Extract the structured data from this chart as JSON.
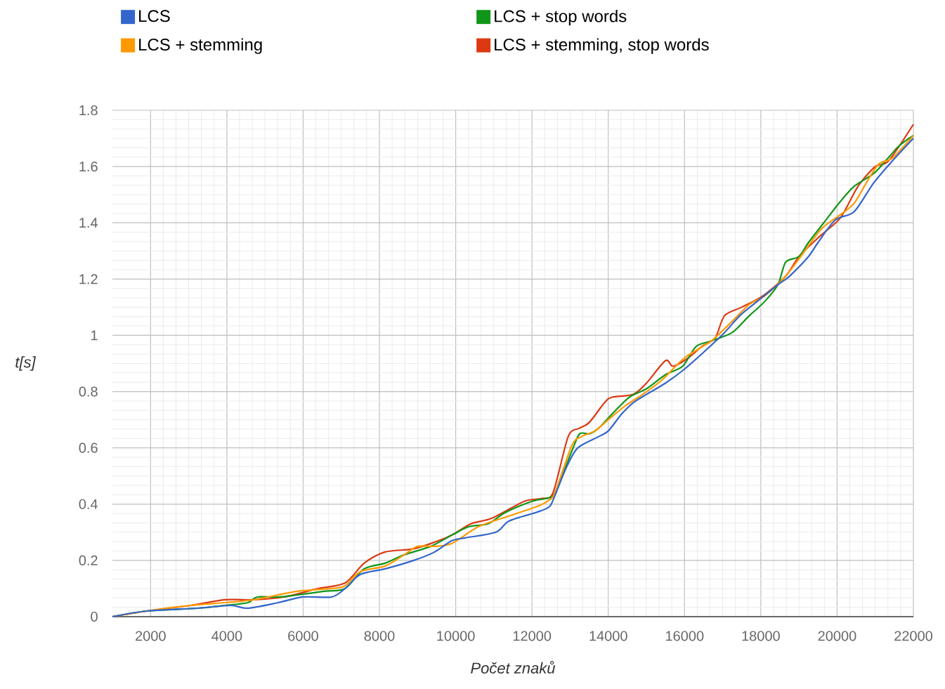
{
  "chart_data": {
    "type": "line",
    "xlabel": "Počet znaků",
    "ylabel": "t[s]",
    "xlim": [
      1000,
      22000
    ],
    "ylim": [
      0,
      1.8
    ],
    "xticks": [
      2000,
      4000,
      6000,
      8000,
      10000,
      12000,
      14000,
      16000,
      18000,
      20000,
      22000
    ],
    "yticks": [
      0,
      0.2,
      0.4,
      0.6,
      0.8,
      1,
      1.2,
      1.4,
      1.6,
      1.8
    ],
    "grid": true,
    "legend": "top",
    "series": [
      {
        "name": "LCS",
        "color": "#3366cc",
        "x": [
          1000,
          1900,
          3200,
          4100,
          4550,
          5350,
          6000,
          6750,
          7100,
          7500,
          8150,
          8900,
          9450,
          9900,
          10250,
          11050,
          11400,
          12100,
          12450,
          12600,
          12900,
          13200,
          13750,
          14000,
          14350,
          14650,
          15000,
          15500,
          16000,
          16500,
          17050,
          17450,
          17900,
          18450,
          18750,
          19250,
          19500,
          19950,
          20450,
          20950,
          21450,
          22000
        ],
        "values": [
          0,
          0.02,
          0.03,
          0.04,
          0.03,
          0.05,
          0.07,
          0.07,
          0.1,
          0.15,
          0.17,
          0.2,
          0.23,
          0.27,
          0.28,
          0.3,
          0.34,
          0.37,
          0.39,
          0.43,
          0.53,
          0.6,
          0.64,
          0.66,
          0.72,
          0.76,
          0.79,
          0.83,
          0.88,
          0.94,
          1.01,
          1.07,
          1.12,
          1.18,
          1.21,
          1.28,
          1.33,
          1.41,
          1.44,
          1.54,
          1.62,
          1.7
        ]
      },
      {
        "name": "LCS + stemming",
        "color": "#ff9900",
        "x": [
          1000,
          1900,
          3050,
          3950,
          4700,
          5850,
          6750,
          7100,
          7500,
          8150,
          8650,
          9000,
          9450,
          9900,
          10600,
          11450,
          12100,
          12400,
          12600,
          13050,
          13300,
          13650,
          14000,
          14450,
          14900,
          15400,
          16000,
          16700,
          17250,
          17700,
          18100,
          18650,
          19100,
          19600,
          20100,
          20450,
          20800,
          21100,
          21450,
          22000
        ],
        "values": [
          0,
          0.02,
          0.04,
          0.05,
          0.06,
          0.09,
          0.1,
          0.11,
          0.16,
          0.18,
          0.22,
          0.25,
          0.25,
          0.26,
          0.32,
          0.36,
          0.39,
          0.41,
          0.44,
          0.61,
          0.64,
          0.66,
          0.7,
          0.75,
          0.79,
          0.84,
          0.92,
          0.98,
          1.05,
          1.11,
          1.14,
          1.21,
          1.29,
          1.38,
          1.43,
          1.47,
          1.55,
          1.61,
          1.63,
          1.71
        ]
      },
      {
        "name": "LCS + stop words",
        "color": "#109618",
        "x": [
          1000,
          1900,
          3250,
          3950,
          4550,
          4800,
          5400,
          6550,
          7100,
          7600,
          8150,
          8650,
          9350,
          9900,
          10350,
          10850,
          11300,
          12000,
          12350,
          12600,
          13050,
          13250,
          13500,
          13750,
          14100,
          14550,
          15000,
          15500,
          15950,
          16300,
          16700,
          17250,
          17700,
          18100,
          18450,
          18650,
          19000,
          19250,
          19650,
          20050,
          20450,
          21000,
          21600,
          22000
        ],
        "values": [
          0,
          0.02,
          0.03,
          0.04,
          0.05,
          0.07,
          0.07,
          0.09,
          0.1,
          0.17,
          0.19,
          0.22,
          0.25,
          0.29,
          0.32,
          0.33,
          0.37,
          0.41,
          0.42,
          0.44,
          0.59,
          0.65,
          0.65,
          0.67,
          0.72,
          0.78,
          0.81,
          0.86,
          0.89,
          0.96,
          0.98,
          1.01,
          1.07,
          1.12,
          1.18,
          1.26,
          1.28,
          1.33,
          1.4,
          1.47,
          1.53,
          1.58,
          1.67,
          1.71
        ]
      },
      {
        "name": "LCS + stemming, stop words",
        "color": "#dc3912",
        "x": [
          1000,
          1900,
          3050,
          3950,
          4700,
          5500,
          6400,
          7100,
          7600,
          8150,
          8850,
          9350,
          9900,
          10400,
          10950,
          11800,
          12250,
          12550,
          12950,
          13250,
          13500,
          13900,
          14100,
          14650,
          15000,
          15500,
          15700,
          16100,
          16450,
          16800,
          17050,
          17500,
          18050,
          18650,
          19000,
          19450,
          19700,
          20100,
          20550,
          21000,
          21350,
          22000
        ],
        "values": [
          0,
          0.02,
          0.04,
          0.06,
          0.06,
          0.07,
          0.1,
          0.12,
          0.19,
          0.23,
          0.24,
          0.26,
          0.29,
          0.33,
          0.35,
          0.41,
          0.42,
          0.44,
          0.64,
          0.67,
          0.69,
          0.76,
          0.78,
          0.79,
          0.83,
          0.91,
          0.89,
          0.92,
          0.96,
          0.99,
          1.07,
          1.1,
          1.14,
          1.21,
          1.28,
          1.34,
          1.37,
          1.42,
          1.53,
          1.6,
          1.62,
          1.75
        ]
      }
    ]
  }
}
